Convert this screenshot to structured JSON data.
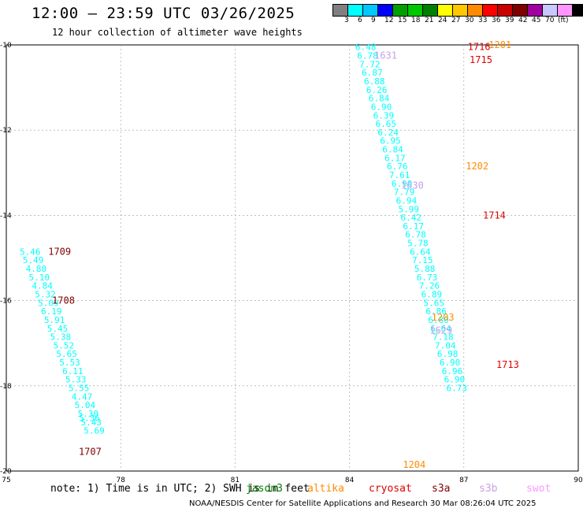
{
  "chart_data": {
    "type": "scatter",
    "title": "12:00 – 23:59 UTC 03/26/2025",
    "subtitle": "12 hour collection of altimeter wave heights",
    "xlim": [
      75,
      90
    ],
    "ylim": [
      -20,
      -10
    ],
    "x_ticks": [
      "75",
      "78",
      "81",
      "84",
      "87",
      "90"
    ],
    "y_ticks": [
      "-10",
      "-12",
      "-14",
      "-16",
      "-18",
      "-20"
    ],
    "grid": "dashed",
    "color_scale": {
      "unit": "(ft)",
      "labels": [
        "3",
        "6",
        "9",
        "12",
        "15",
        "18",
        "21",
        "24",
        "27",
        "30",
        "33",
        "36",
        "39",
        "42",
        "45",
        "70"
      ],
      "colors": [
        "#808080",
        "#00ffff",
        "#00c8ff",
        "#0000ff",
        "#00a000",
        "#00c800",
        "#008000",
        "#ffff00",
        "#ffc800",
        "#ff8c00",
        "#ff0000",
        "#c80000",
        "#800000",
        "#a000a0",
        "#c8c8ff",
        "#ff96ff",
        "#000000"
      ]
    },
    "track_labels": [
      {
        "text": "1709",
        "lon": 76.1,
        "lat": -14.85,
        "color": "#800000"
      },
      {
        "text": "1708",
        "lon": 76.2,
        "lat": -16.0,
        "color": "#800000"
      },
      {
        "text": "1707",
        "lon": 76.9,
        "lat": -19.55,
        "color": "#800000"
      },
      {
        "text": "1631",
        "lon": 84.65,
        "lat": -10.25,
        "color": "#c8a0e6"
      },
      {
        "text": "1630",
        "lon": 85.35,
        "lat": -13.3,
        "color": "#c8a0e6"
      },
      {
        "text": "1629",
        "lon": 86.1,
        "lat": -16.7,
        "color": "#c8a0e6"
      },
      {
        "text": "1203",
        "lon": 86.15,
        "lat": -16.4,
        "color": "#ff8c00"
      },
      {
        "text": "1202",
        "lon": 87.05,
        "lat": -12.85,
        "color": "#ff8c00"
      },
      {
        "text": "1204",
        "lon": 85.4,
        "lat": -19.85,
        "color": "#ff8c00"
      },
      {
        "text": "1201",
        "lon": 87.65,
        "lat": -10.0,
        "color": "#ff8c00"
      },
      {
        "text": "1716",
        "lon": 87.1,
        "lat": -10.05,
        "color": "#e00000"
      },
      {
        "text": "1715",
        "lon": 87.15,
        "lat": -10.35,
        "color": "#e00000"
      },
      {
        "text": "1714",
        "lon": 87.5,
        "lat": -14.0,
        "color": "#e00000"
      },
      {
        "text": "1713",
        "lon": 87.85,
        "lat": -17.5,
        "color": "#e00000"
      }
    ],
    "series": [
      {
        "name": "jason3",
        "color": "#00ffff",
        "points": [
          {
            "lon": 75.35,
            "lat": -14.85,
            "value": 5.46
          },
          {
            "lon": 75.43,
            "lat": -15.05,
            "value": 5.49
          },
          {
            "lon": 75.51,
            "lat": -15.25,
            "value": 4.8
          },
          {
            "lon": 75.59,
            "lat": -15.45,
            "value": 5.1
          },
          {
            "lon": 75.67,
            "lat": -15.65,
            "value": 4.84
          },
          {
            "lon": 75.75,
            "lat": -15.85,
            "value": 5.32
          },
          {
            "lon": 75.83,
            "lat": -16.05,
            "value": 5.09
          },
          {
            "lon": 75.91,
            "lat": -16.25,
            "value": 6.19
          },
          {
            "lon": 75.99,
            "lat": -16.45,
            "value": 5.91
          },
          {
            "lon": 76.07,
            "lat": -16.65,
            "value": 5.45
          },
          {
            "lon": 76.15,
            "lat": -16.85,
            "value": 5.38
          },
          {
            "lon": 76.23,
            "lat": -17.05,
            "value": 5.52
          },
          {
            "lon": 76.31,
            "lat": -17.25,
            "value": 5.65
          },
          {
            "lon": 76.39,
            "lat": -17.45,
            "value": 5.53
          },
          {
            "lon": 76.47,
            "lat": -17.65,
            "value": 6.11
          },
          {
            "lon": 76.55,
            "lat": -17.85,
            "value": 5.33
          },
          {
            "lon": 76.63,
            "lat": -18.05,
            "value": 5.55
          },
          {
            "lon": 76.71,
            "lat": -18.25,
            "value": 4.47
          },
          {
            "lon": 76.79,
            "lat": -18.45,
            "value": 5.04
          },
          {
            "lon": 76.87,
            "lat": -18.65,
            "value": 5.3
          },
          {
            "lon": 76.91,
            "lat": -18.75,
            "value": 5.36
          },
          {
            "lon": 76.95,
            "lat": -18.85,
            "value": 5.43
          },
          {
            "lon": 77.03,
            "lat": -19.05,
            "value": 5.69
          },
          {
            "lon": 84.15,
            "lat": -10.05,
            "value": 6.48
          },
          {
            "lon": 84.2,
            "lat": -10.25,
            "value": 6.78
          },
          {
            "lon": 84.26,
            "lat": -10.45,
            "value": 7.72
          },
          {
            "lon": 84.32,
            "lat": -10.65,
            "value": 6.87
          },
          {
            "lon": 84.38,
            "lat": -10.85,
            "value": 6.88
          },
          {
            "lon": 84.44,
            "lat": -11.05,
            "value": 6.26
          },
          {
            "lon": 84.5,
            "lat": -11.25,
            "value": 6.84
          },
          {
            "lon": 84.56,
            "lat": -11.45,
            "value": 6.9
          },
          {
            "lon": 84.62,
            "lat": -11.65,
            "value": 6.39
          },
          {
            "lon": 84.68,
            "lat": -11.85,
            "value": 6.65
          },
          {
            "lon": 84.74,
            "lat": -12.05,
            "value": 6.24
          },
          {
            "lon": 84.8,
            "lat": -12.25,
            "value": 6.95
          },
          {
            "lon": 84.86,
            "lat": -12.45,
            "value": 6.84
          },
          {
            "lon": 84.92,
            "lat": -12.65,
            "value": 6.17
          },
          {
            "lon": 84.98,
            "lat": -12.85,
            "value": 6.76
          },
          {
            "lon": 85.04,
            "lat": -13.05,
            "value": 7.61
          },
          {
            "lon": 85.1,
            "lat": -13.25,
            "value": 6.9
          },
          {
            "lon": 85.16,
            "lat": -13.45,
            "value": 7.79
          },
          {
            "lon": 85.22,
            "lat": -13.65,
            "value": 6.94
          },
          {
            "lon": 85.28,
            "lat": -13.85,
            "value": 5.99
          },
          {
            "lon": 85.34,
            "lat": -14.05,
            "value": 6.42
          },
          {
            "lon": 85.4,
            "lat": -14.25,
            "value": 6.17
          },
          {
            "lon": 85.46,
            "lat": -14.45,
            "value": 6.78
          },
          {
            "lon": 85.52,
            "lat": -14.65,
            "value": 5.78
          },
          {
            "lon": 85.58,
            "lat": -14.85,
            "value": 6.64
          },
          {
            "lon": 85.64,
            "lat": -15.05,
            "value": 7.15
          },
          {
            "lon": 85.7,
            "lat": -15.25,
            "value": 5.88
          },
          {
            "lon": 85.76,
            "lat": -15.45,
            "value": 6.73
          },
          {
            "lon": 85.82,
            "lat": -15.65,
            "value": 7.26
          },
          {
            "lon": 85.88,
            "lat": -15.85,
            "value": 6.89
          },
          {
            "lon": 85.94,
            "lat": -16.05,
            "value": 5.65
          },
          {
            "lon": 86.0,
            "lat": -16.25,
            "value": 6.86
          },
          {
            "lon": 86.06,
            "lat": -16.45,
            "value": 6.8
          },
          {
            "lon": 86.12,
            "lat": -16.65,
            "value": 6.64
          },
          {
            "lon": 86.18,
            "lat": -16.85,
            "value": 7.18
          },
          {
            "lon": 86.24,
            "lat": -17.05,
            "value": 7.04
          },
          {
            "lon": 86.3,
            "lat": -17.25,
            "value": 6.98
          },
          {
            "lon": 86.36,
            "lat": -17.45,
            "value": 6.9
          },
          {
            "lon": 86.42,
            "lat": -17.65,
            "value": 6.96
          },
          {
            "lon": 86.48,
            "lat": -17.85,
            "value": 6.9
          },
          {
            "lon": 86.54,
            "lat": -18.05,
            "value": 6.73
          }
        ]
      },
      {
        "name": "altika",
        "color": "#ff8c00",
        "points": []
      },
      {
        "name": "cryosat",
        "color": "#e00000",
        "points": []
      },
      {
        "name": "s3a",
        "color": "#800000",
        "points": []
      },
      {
        "name": "s3b",
        "color": "#c8a0e6",
        "points": []
      },
      {
        "name": "swot",
        "color": "#ff96ff",
        "points": []
      }
    ]
  },
  "note": "note: 1) Time is in UTC; 2) SWH is in feet",
  "satellites": [
    {
      "label": "jason3",
      "color": "#008000"
    },
    {
      "label": "altika",
      "color": "#ff8c00"
    },
    {
      "label": "cryosat",
      "color": "#e00000"
    },
    {
      "label": "s3a",
      "color": "#800000"
    },
    {
      "label": "s3b",
      "color": "#c8a0e6"
    },
    {
      "label": "swot",
      "color": "#ff96ff"
    }
  ],
  "footer": "NOAA/NESDIS Center for Satellite Applications and Research   30 Mar 08:26:04 UTC 2025"
}
